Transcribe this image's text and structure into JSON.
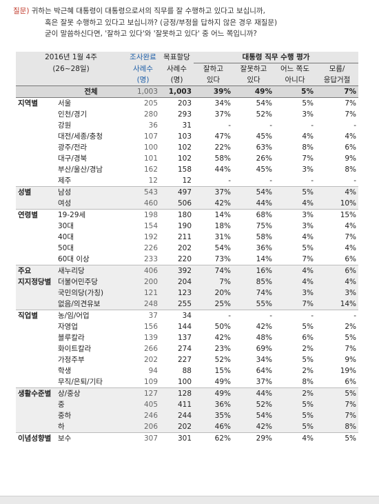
{
  "question": {
    "label": "질문)",
    "line1": "귀하는 박근혜 대통령이 대통령으로서의 직무를 잘 수행하고 있다고 보십니까,",
    "line2": "혹은 잘못 수행하고 있다고 보십니까? (긍정/부정을 답하지 않은 경우 재질문)",
    "line3": "굳이 말씀하신다면, '잘하고 있다'와 '잘못하고 있다' 중 어느 쪽입니까?"
  },
  "header": {
    "period": "2016년 1월 4주",
    "dates": "(26~28일)",
    "survey_done": "조사완료",
    "survey_done_unit1": "사례수",
    "survey_done_unit2": "(명)",
    "target": "목표할당",
    "target_unit1": "사례수",
    "target_unit2": "(명)",
    "eval_title": "대통령 직무 수행 평가",
    "cols": [
      {
        "l1": "잘하고",
        "l2": "있다"
      },
      {
        "l1": "잘못하고",
        "l2": "있다"
      },
      {
        "l1": "어느 쪽도",
        "l2": "아니다"
      },
      {
        "l1": "모름/",
        "l2": "응답거절"
      }
    ]
  },
  "total": {
    "label": "전체",
    "n1": "1,003",
    "n2": "1,003",
    "v": [
      "39%",
      "49%",
      "5%",
      "7%"
    ]
  },
  "groups": [
    {
      "name": "지역별",
      "rows": [
        {
          "label": "서울",
          "n1": "205",
          "n2": "203",
          "v": [
            "34%",
            "54%",
            "5%",
            "7%"
          ]
        },
        {
          "label": "인천/경기",
          "n1": "280",
          "n2": "293",
          "v": [
            "37%",
            "52%",
            "3%",
            "7%"
          ]
        },
        {
          "label": "강원",
          "n1": "36",
          "n2": "31",
          "v": [
            "-",
            "-",
            "-",
            "-"
          ]
        },
        {
          "label": "대전/세종/충청",
          "n1": "107",
          "n2": "103",
          "v": [
            "47%",
            "45%",
            "4%",
            "4%"
          ]
        },
        {
          "label": "광주/전라",
          "n1": "100",
          "n2": "102",
          "v": [
            "22%",
            "63%",
            "8%",
            "6%"
          ]
        },
        {
          "label": "대구/경북",
          "n1": "101",
          "n2": "102",
          "v": [
            "58%",
            "26%",
            "7%",
            "9%"
          ]
        },
        {
          "label": "부산/울산/경남",
          "n1": "162",
          "n2": "158",
          "v": [
            "44%",
            "45%",
            "3%",
            "8%"
          ]
        },
        {
          "label": "제주",
          "n1": "12",
          "n2": "12",
          "v": [
            "-",
            "-",
            "-",
            "-"
          ]
        }
      ]
    },
    {
      "name": "성별",
      "rows": [
        {
          "label": "남성",
          "n1": "543",
          "n2": "497",
          "v": [
            "37%",
            "54%",
            "5%",
            "4%"
          ]
        },
        {
          "label": "여성",
          "n1": "460",
          "n2": "506",
          "v": [
            "42%",
            "44%",
            "4%",
            "10%"
          ]
        }
      ]
    },
    {
      "name": "연령별",
      "rows": [
        {
          "label": "19-29세",
          "n1": "198",
          "n2": "180",
          "v": [
            "14%",
            "68%",
            "3%",
            "15%"
          ]
        },
        {
          "label": "30대",
          "n1": "154",
          "n2": "190",
          "v": [
            "18%",
            "75%",
            "3%",
            "4%"
          ]
        },
        {
          "label": "40대",
          "n1": "192",
          "n2": "211",
          "v": [
            "31%",
            "58%",
            "4%",
            "7%"
          ]
        },
        {
          "label": "50대",
          "n1": "226",
          "n2": "202",
          "v": [
            "54%",
            "36%",
            "5%",
            "4%"
          ]
        },
        {
          "label": "60대 이상",
          "n1": "233",
          "n2": "220",
          "v": [
            "73%",
            "14%",
            "7%",
            "6%"
          ]
        }
      ]
    },
    {
      "name": "주요",
      "name2": "지지정당별",
      "rows": [
        {
          "label": "새누리당",
          "n1": "406",
          "n2": "392",
          "v": [
            "74%",
            "16%",
            "4%",
            "6%"
          ]
        },
        {
          "label": "더불어민주당",
          "n1": "200",
          "n2": "204",
          "v": [
            "7%",
            "85%",
            "4%",
            "4%"
          ]
        },
        {
          "label": "국민의당(가칭)",
          "n1": "121",
          "n2": "123",
          "v": [
            "20%",
            "74%",
            "3%",
            "3%"
          ]
        },
        {
          "label": "없음/의견유보",
          "n1": "248",
          "n2": "255",
          "v": [
            "25%",
            "55%",
            "7%",
            "14%"
          ]
        }
      ]
    },
    {
      "name": "직업별",
      "rows": [
        {
          "label": "농/임/어업",
          "n1": "37",
          "n2": "34",
          "v": [
            "-",
            "-",
            "-",
            "-"
          ]
        },
        {
          "label": "자영업",
          "n1": "156",
          "n2": "144",
          "v": [
            "50%",
            "42%",
            "5%",
            "2%"
          ]
        },
        {
          "label": "블루칼라",
          "n1": "139",
          "n2": "137",
          "v": [
            "42%",
            "48%",
            "6%",
            "5%"
          ]
        },
        {
          "label": "화이트칼라",
          "n1": "266",
          "n2": "274",
          "v": [
            "23%",
            "69%",
            "2%",
            "7%"
          ]
        },
        {
          "label": "가정주부",
          "n1": "202",
          "n2": "227",
          "v": [
            "52%",
            "34%",
            "5%",
            "9%"
          ]
        },
        {
          "label": "학생",
          "n1": "94",
          "n2": "88",
          "v": [
            "15%",
            "64%",
            "2%",
            "19%"
          ]
        },
        {
          "label": "무직/은퇴/기타",
          "n1": "109",
          "n2": "100",
          "v": [
            "49%",
            "37%",
            "8%",
            "6%"
          ]
        }
      ]
    },
    {
      "name": "생활수준별",
      "rows": [
        {
          "label": "상/중상",
          "n1": "127",
          "n2": "128",
          "v": [
            "49%",
            "44%",
            "2%",
            "5%"
          ]
        },
        {
          "label": "중",
          "n1": "405",
          "n2": "411",
          "v": [
            "36%",
            "52%",
            "5%",
            "7%"
          ]
        },
        {
          "label": "중하",
          "n1": "246",
          "n2": "244",
          "v": [
            "35%",
            "54%",
            "5%",
            "7%"
          ]
        },
        {
          "label": "하",
          "n1": "206",
          "n2": "202",
          "v": [
            "46%",
            "42%",
            "5%",
            "8%"
          ]
        }
      ]
    },
    {
      "name": "이념성향별",
      "rows": [
        {
          "label": "보수",
          "n1": "307",
          "n2": "301",
          "v": [
            "62%",
            "29%",
            "4%",
            "5%"
          ]
        }
      ]
    }
  ]
}
